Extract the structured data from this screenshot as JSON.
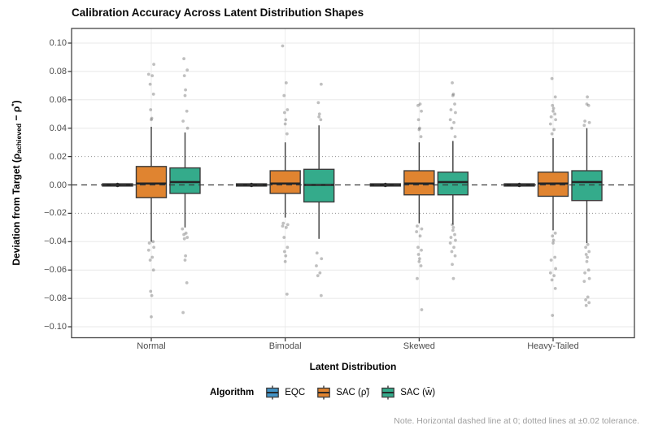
{
  "chart_data": {
    "type": "boxplot",
    "title": "Calibration Accuracy Across Latent Distribution Shapes",
    "xlabel": "Latent Distribution",
    "ylabel_text": "Deviation from Target (ρachieved − ρ*)",
    "ylabel_parts": {
      "pre": "Deviation from Target (ρ",
      "sub": "achieved",
      "mid": " − ρ",
      "sup": "*",
      "post": ")"
    },
    "legend_title": "Algorithm",
    "caption": "Note. Horizontal dashed line at 0; dotted lines at ±0.02 tolerance.",
    "categories": [
      "Normal",
      "Bimodal",
      "Skewed",
      "Heavy-Tailed"
    ],
    "ylim": [
      -0.112,
      0.112
    ],
    "yticks": [
      0.1,
      0.08,
      0.06,
      0.04,
      0.02,
      0.0,
      -0.02,
      -0.04,
      -0.06,
      -0.08,
      -0.1
    ],
    "grid": "major horizontal and vertical, light gray",
    "legend_position": "bottom",
    "reference_lines": {
      "dashed_zero": 0.0,
      "dotted_tolerance": [
        0.02,
        -0.02
      ]
    },
    "colors": {
      "box_stroke": "#3b3b3b",
      "median": "#252525",
      "outlier": "#404040",
      "grid_major": "#e8e8e8",
      "grid_dotted": "#909090",
      "zero_dash": "#3a3a3a",
      "panel_border": "#454545",
      "tick_text": "#4d4d4d"
    },
    "series": [
      {
        "name": "EQC",
        "color": "#4494c6",
        "flat": true,
        "boxes": [
          {
            "low": -0.0015,
            "q1": -0.0008,
            "median": 0.0,
            "q3": 0.0008,
            "high": 0.0015,
            "outliers": []
          },
          {
            "low": -0.0015,
            "q1": -0.0008,
            "median": 0.0,
            "q3": 0.0008,
            "high": 0.0015,
            "outliers": []
          },
          {
            "low": -0.0015,
            "q1": -0.0008,
            "median": 0.0,
            "q3": 0.0008,
            "high": 0.0015,
            "outliers": []
          },
          {
            "low": -0.0015,
            "q1": -0.0008,
            "median": 0.0,
            "q3": 0.0008,
            "high": 0.0015,
            "outliers": []
          }
        ]
      },
      {
        "name": "SAC (ρ̃)",
        "color": "#e08430",
        "flat": false,
        "boxes": [
          {
            "low": -0.04,
            "q1": -0.009,
            "median": 0.001,
            "q3": 0.013,
            "high": 0.041,
            "outliers": [
              0.085,
              0.078,
              0.077,
              0.071,
              0.064,
              0.053,
              0.047,
              0.046,
              -0.04,
              -0.041,
              -0.044,
              -0.046,
              -0.051,
              -0.053,
              -0.06,
              -0.075,
              -0.078,
              -0.093
            ]
          },
          {
            "low": -0.023,
            "q1": -0.006,
            "median": 0.001,
            "q3": 0.01,
            "high": 0.03,
            "outliers": [
              0.098,
              0.072,
              0.063,
              0.053,
              0.051,
              0.046,
              0.043,
              0.036,
              -0.027,
              -0.028,
              -0.029,
              -0.03,
              -0.037,
              -0.044,
              -0.047,
              -0.05,
              -0.054,
              -0.077
            ]
          },
          {
            "low": -0.027,
            "q1": -0.007,
            "median": 0.001,
            "q3": 0.01,
            "high": 0.03,
            "outliers": [
              0.057,
              0.056,
              0.052,
              0.046,
              0.04,
              0.039,
              0.034,
              -0.029,
              -0.031,
              -0.033,
              -0.036,
              -0.044,
              -0.046,
              -0.049,
              -0.052,
              -0.054,
              -0.057,
              -0.066,
              -0.088
            ]
          },
          {
            "low": -0.032,
            "q1": -0.008,
            "median": 0.001,
            "q3": 0.009,
            "high": 0.033,
            "outliers": [
              0.075,
              0.062,
              0.056,
              0.054,
              0.052,
              0.05,
              0.048,
              0.046,
              0.043,
              0.039,
              0.036,
              -0.034,
              -0.036,
              -0.039,
              -0.041,
              -0.051,
              -0.053,
              -0.059,
              -0.062,
              -0.064,
              -0.067,
              -0.073,
              -0.092
            ]
          }
        ]
      },
      {
        "name": "SAC (w̄)",
        "color": "#34ab8b",
        "flat": false,
        "boxes": [
          {
            "low": -0.03,
            "q1": -0.006,
            "median": 0.002,
            "q3": 0.012,
            "high": 0.037,
            "outliers": [
              0.089,
              0.081,
              0.077,
              0.067,
              0.063,
              0.052,
              0.045,
              0.04,
              -0.031,
              -0.034,
              -0.035,
              -0.037,
              -0.038,
              -0.05,
              -0.053,
              -0.069,
              -0.09
            ]
          },
          {
            "low": -0.038,
            "q1": -0.012,
            "median": 0.0,
            "q3": 0.011,
            "high": 0.042,
            "outliers": [
              0.071,
              0.058,
              0.05,
              0.048,
              0.046,
              -0.048,
              -0.052,
              -0.057,
              -0.062,
              -0.064,
              -0.078
            ]
          },
          {
            "low": -0.028,
            "q1": -0.007,
            "median": 0.002,
            "q3": 0.009,
            "high": 0.031,
            "outliers": [
              0.072,
              0.064,
              0.063,
              0.057,
              0.053,
              0.051,
              0.046,
              0.044,
              0.04,
              0.034,
              -0.028,
              -0.03,
              -0.032,
              -0.035,
              -0.037,
              -0.039,
              -0.041,
              -0.044,
              -0.047,
              -0.05,
              -0.056,
              -0.066
            ]
          },
          {
            "low": -0.041,
            "q1": -0.011,
            "median": 0.002,
            "q3": 0.01,
            "high": 0.04,
            "outliers": [
              0.062,
              0.057,
              0.056,
              0.045,
              0.044,
              0.042,
              -0.042,
              -0.044,
              -0.047,
              -0.049,
              -0.051,
              -0.054,
              -0.06,
              -0.062,
              -0.066,
              -0.068,
              -0.079,
              -0.081,
              -0.083,
              -0.085
            ]
          }
        ]
      }
    ]
  }
}
